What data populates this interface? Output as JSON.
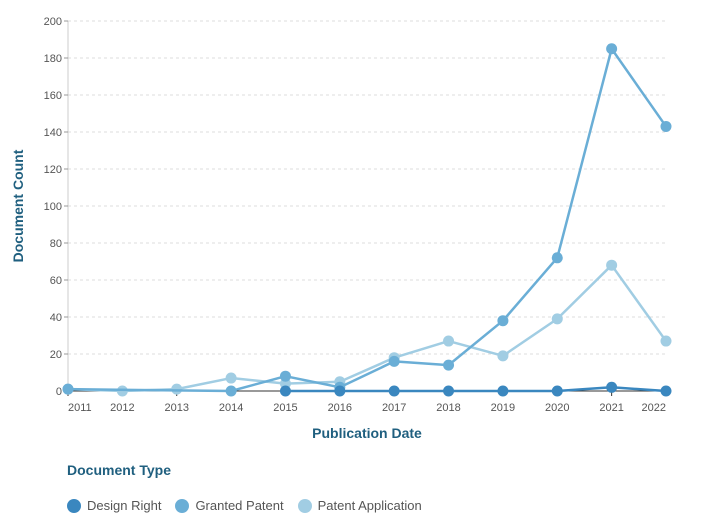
{
  "chart_data": {
    "type": "line",
    "title": "",
    "xlabel": "Publication Date",
    "ylabel": "Document Count",
    "x": [
      "2011",
      "2012",
      "2013",
      "2014",
      "2015",
      "2016",
      "2017",
      "2018",
      "2019",
      "2020",
      "2021",
      "2022"
    ],
    "ylim": [
      0,
      200
    ],
    "yticks": [
      0,
      20,
      40,
      60,
      80,
      100,
      120,
      140,
      160,
      180,
      200
    ],
    "grid": true,
    "legend": {
      "title": "Document Type",
      "placement": "bottom-left"
    },
    "series": [
      {
        "name": "Design Right",
        "color": "#3a87bf",
        "values": [
          null,
          null,
          null,
          null,
          0,
          0,
          0,
          0,
          0,
          0,
          2,
          0
        ]
      },
      {
        "name": "Granted Patent",
        "color": "#6aaed6",
        "values": [
          1,
          null,
          null,
          0,
          8,
          2,
          16,
          14,
          38,
          72,
          185,
          143
        ]
      },
      {
        "name": "Patent Application",
        "color": "#a1cde3",
        "values": [
          1,
          0,
          1,
          7,
          4,
          5,
          18,
          27,
          19,
          39,
          68,
          27
        ]
      }
    ]
  }
}
